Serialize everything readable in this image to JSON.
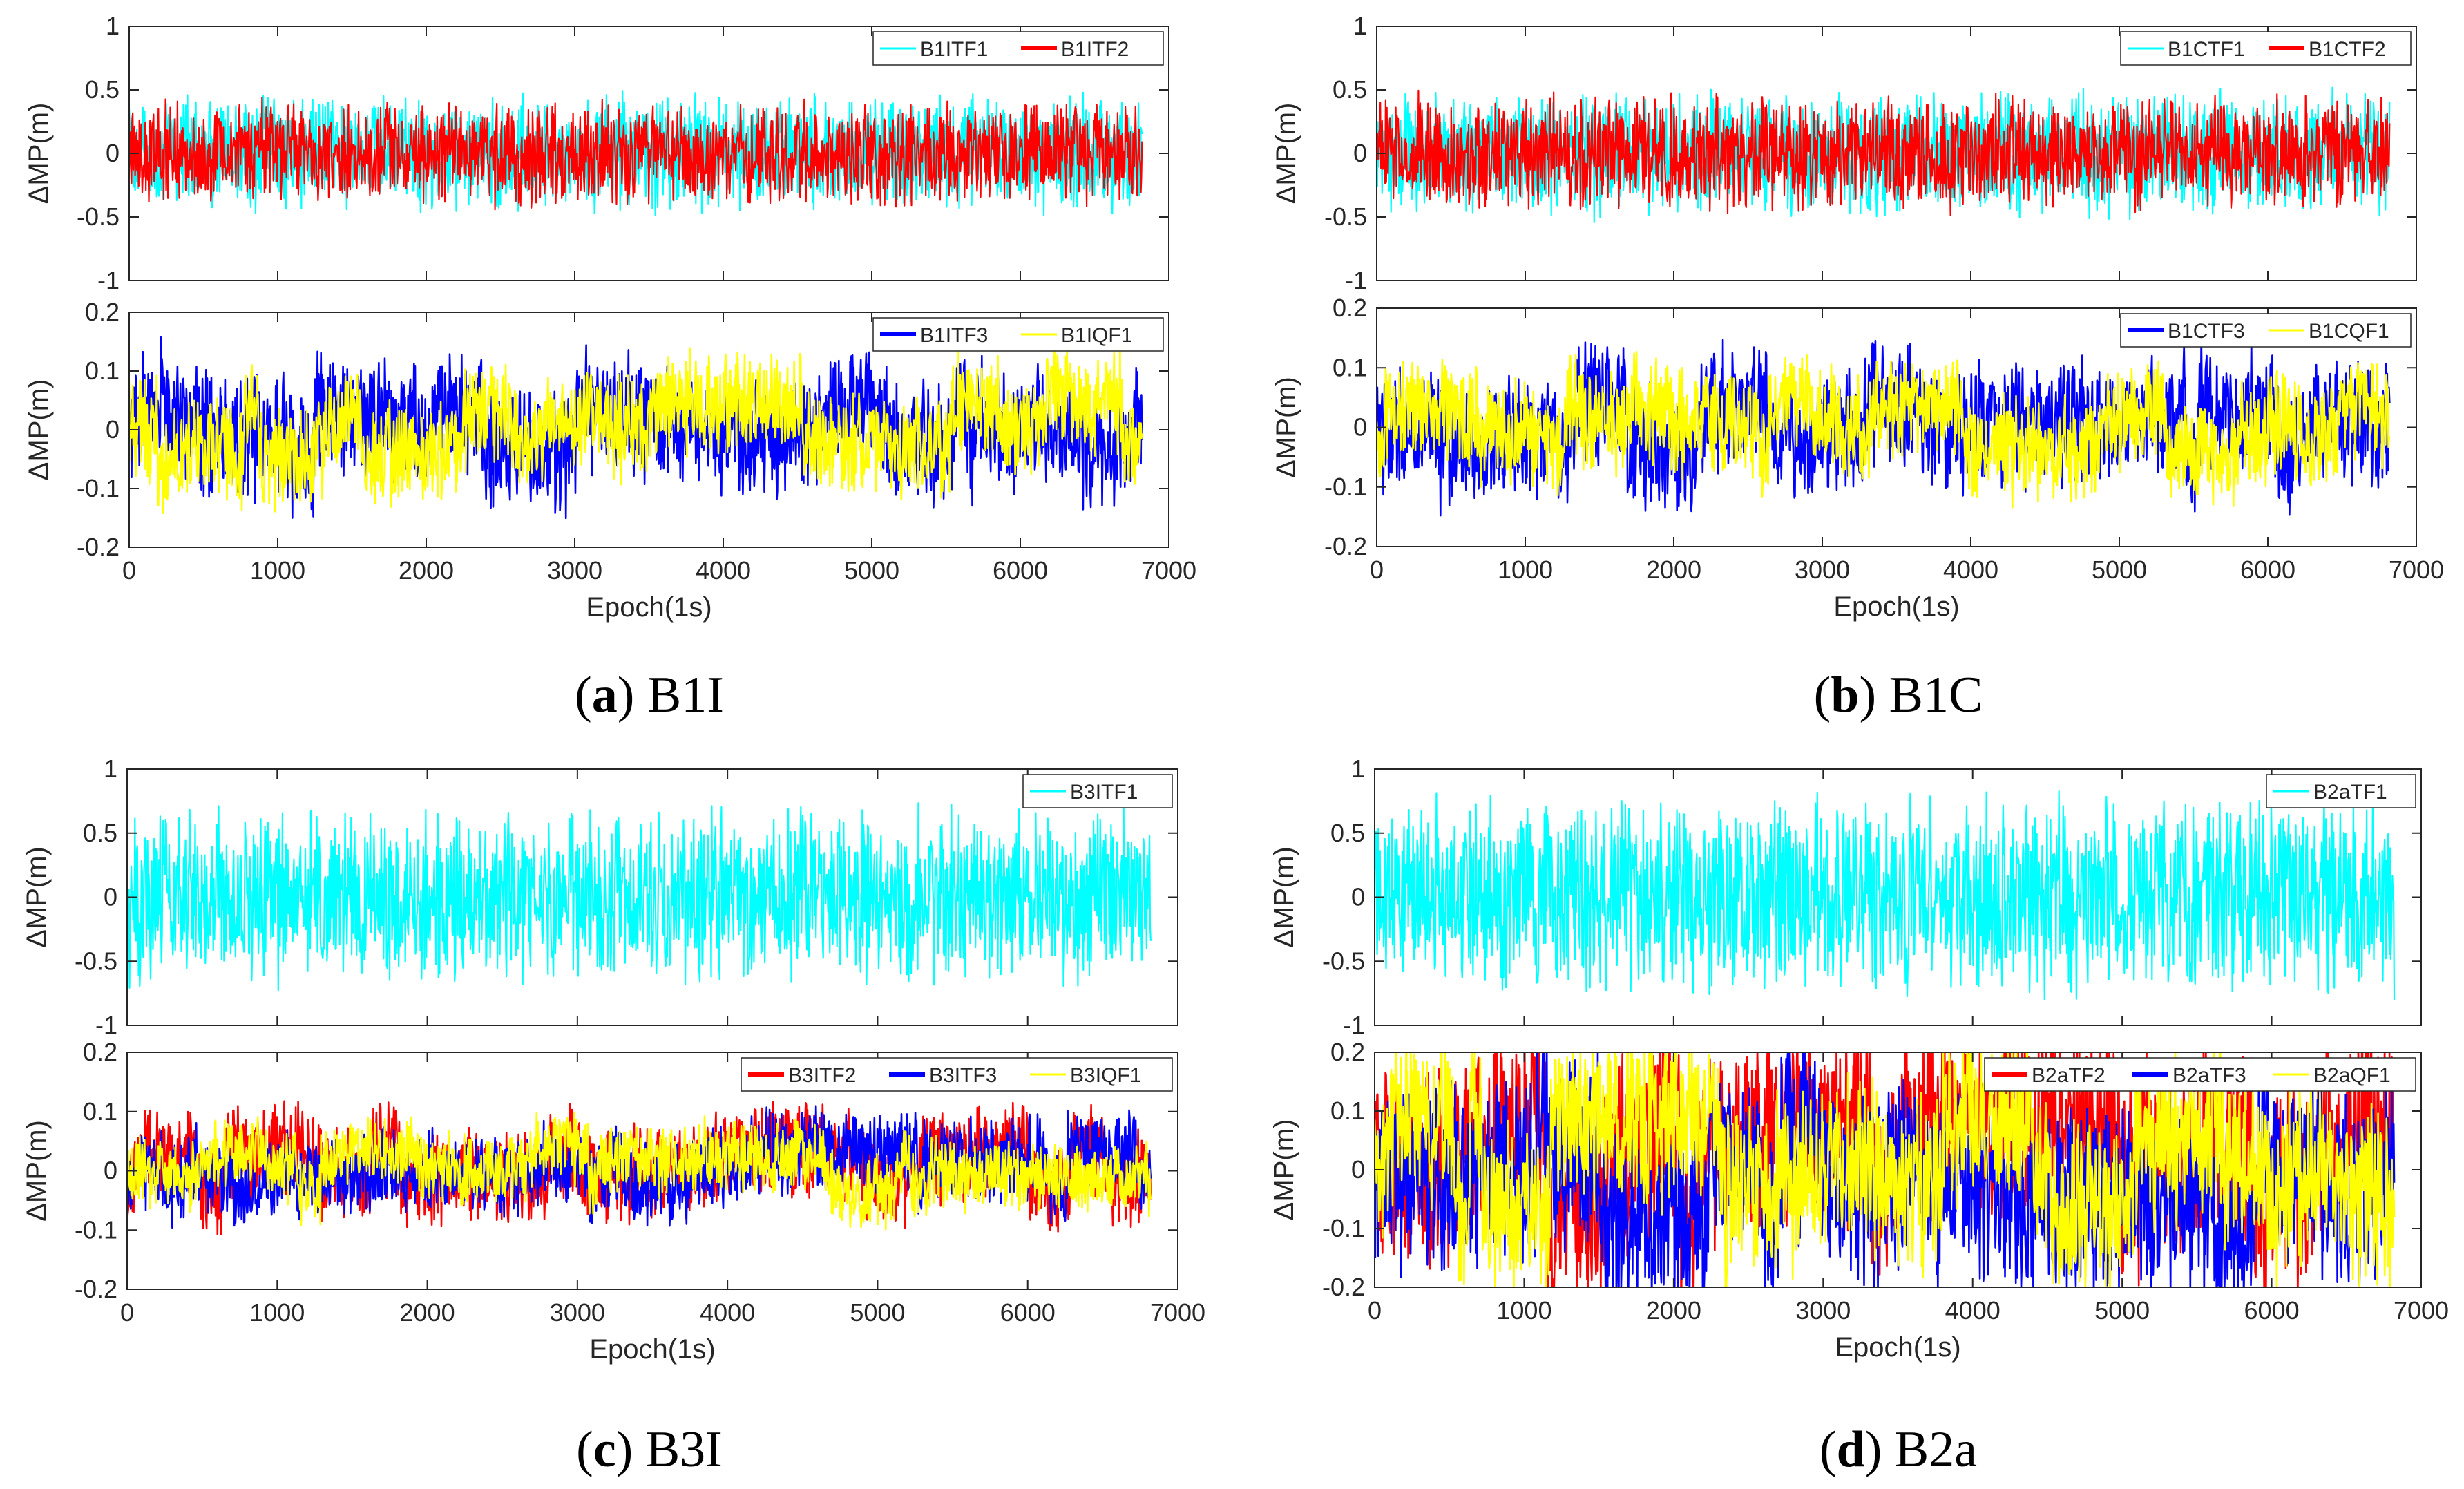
{
  "chart_data": [
    {
      "type": "line",
      "id": "a-top",
      "xlabel": "",
      "ylabel": "ΔMP(m)",
      "xlim": [
        0,
        7000
      ],
      "ylim": [
        -1,
        1
      ],
      "yticks": [
        "-1",
        "-0.5",
        "0",
        "0.5",
        "1"
      ],
      "xticks": [],
      "legend": "top-right",
      "series": [
        {
          "name": "B1ITF1",
          "color": "#00ffff",
          "approx": {
            "n": 6800,
            "amplitude": 0.5,
            "wander": 0.0
          }
        },
        {
          "name": "B1ITF2",
          "color": "#ff0000",
          "approx": {
            "n": 6800,
            "amplitude": 0.45,
            "wander": 0.0
          }
        }
      ]
    },
    {
      "type": "line",
      "id": "a-bottom",
      "xlabel": "Epoch(1s)",
      "ylabel": "ΔMP(m)",
      "xlim": [
        0,
        7000
      ],
      "ylim": [
        -0.2,
        0.2
      ],
      "yticks": [
        "-0.2",
        "-0.1",
        "0",
        "0.1",
        "0.2"
      ],
      "xticks": [
        "0",
        "1000",
        "2000",
        "3000",
        "4000",
        "5000",
        "6000",
        "7000"
      ],
      "legend": "top-right",
      "series": [
        {
          "name": "B1ITF3",
          "color": "#0000ff",
          "approx": {
            "n": 6800,
            "amplitude": 0.12,
            "wander": 0.05
          }
        },
        {
          "name": "B1IQF1",
          "color": "#ffff00",
          "approx": {
            "n": 6800,
            "amplitude": 0.1,
            "wander": 0.05
          }
        }
      ]
    },
    {
      "type": "line",
      "id": "b-top",
      "xlabel": "",
      "ylabel": "ΔMP(m)",
      "xlim": [
        0,
        7000
      ],
      "ylim": [
        -1,
        1
      ],
      "yticks": [
        "-1",
        "-0.5",
        "0",
        "0.5",
        "1"
      ],
      "xticks": [],
      "legend": "top-right",
      "series": [
        {
          "name": "B1CTF1",
          "color": "#00ffff",
          "approx": {
            "n": 6800,
            "amplitude": 0.55,
            "wander": 0.0
          }
        },
        {
          "name": "B1CTF2",
          "color": "#ff0000",
          "approx": {
            "n": 6800,
            "amplitude": 0.5,
            "wander": 0.0
          }
        }
      ]
    },
    {
      "type": "line",
      "id": "b-bottom",
      "xlabel": "Epoch(1s)",
      "ylabel": "ΔMP(m)",
      "xlim": [
        0,
        7000
      ],
      "ylim": [
        -0.2,
        0.2
      ],
      "yticks": [
        "-0.2",
        "-0.1",
        "0",
        "0.1",
        "0.2"
      ],
      "xticks": [
        "0",
        "1000",
        "2000",
        "3000",
        "4000",
        "5000",
        "6000",
        "7000"
      ],
      "legend": "top-right",
      "series": [
        {
          "name": "B1CTF3",
          "color": "#0000ff",
          "approx": {
            "n": 6800,
            "amplitude": 0.12,
            "wander": 0.05
          }
        },
        {
          "name": "B1CQF1",
          "color": "#ffff00",
          "approx": {
            "n": 6800,
            "amplitude": 0.1,
            "wander": 0.05
          }
        }
      ]
    },
    {
      "type": "line",
      "id": "c-top",
      "xlabel": "",
      "ylabel": "ΔMP(m)",
      "xlim": [
        0,
        7000
      ],
      "ylim": [
        -1,
        1
      ],
      "yticks": [
        "-1",
        "-0.5",
        "0",
        "0.5",
        "1"
      ],
      "xticks": [],
      "legend": "top-right",
      "series": [
        {
          "name": "B3ITF1",
          "color": "#00ffff",
          "approx": {
            "n": 6800,
            "amplitude": 0.75,
            "wander": 0.0
          }
        }
      ]
    },
    {
      "type": "line",
      "id": "c-bottom",
      "xlabel": "Epoch(1s)",
      "ylabel": "ΔMP(m)",
      "xlim": [
        0,
        7000
      ],
      "ylim": [
        -0.2,
        0.2
      ],
      "yticks": [
        "-0.2",
        "-0.1",
        "0",
        "0.1",
        "0.2"
      ],
      "xticks": [
        "0",
        "1000",
        "2000",
        "3000",
        "4000",
        "5000",
        "6000",
        "7000"
      ],
      "legend": "top-right",
      "series": [
        {
          "name": "B3ITF2",
          "color": "#ff0000",
          "approx": {
            "n": 6800,
            "amplitude": 0.09,
            "wander": 0.04
          }
        },
        {
          "name": "B3ITF3",
          "color": "#0000ff",
          "approx": {
            "n": 6800,
            "amplitude": 0.08,
            "wander": 0.04
          }
        },
        {
          "name": "B3IQF1",
          "color": "#ffff00",
          "approx": {
            "n": 6800,
            "amplitude": 0.07,
            "wander": 0.04
          }
        }
      ]
    },
    {
      "type": "line",
      "id": "d-top",
      "xlabel": "",
      "ylabel": "ΔMP(m)",
      "xlim": [
        0,
        7000
      ],
      "ylim": [
        -1,
        1
      ],
      "yticks": [
        "-1",
        "-0.5",
        "0",
        "0.5",
        "1"
      ],
      "xticks": [],
      "legend": "top-right",
      "series": [
        {
          "name": "B2aTF1",
          "color": "#00ffff",
          "approx": {
            "n": 6800,
            "amplitude": 0.85,
            "wander": 0.0
          }
        }
      ]
    },
    {
      "type": "line",
      "id": "d-bottom",
      "xlabel": "Epoch(1s)",
      "ylabel": "ΔMP(m)",
      "xlim": [
        0,
        7000
      ],
      "ylim": [
        -0.2,
        0.2
      ],
      "yticks": [
        "-0.2",
        "-0.1",
        "0",
        "0.1",
        "0.2"
      ],
      "xticks": [
        "0",
        "1000",
        "2000",
        "3000",
        "4000",
        "5000",
        "6000",
        "7000"
      ],
      "legend": "top-right",
      "series": [
        {
          "name": "B2aTF2",
          "color": "#ff0000",
          "approx": {
            "n": 6800,
            "amplitude": 0.2,
            "wander": 0.1
          }
        },
        {
          "name": "B2aTF3",
          "color": "#0000ff",
          "approx": {
            "n": 6800,
            "amplitude": 0.19,
            "wander": 0.1
          }
        },
        {
          "name": "B2aQF1",
          "color": "#ffff00",
          "approx": {
            "n": 6800,
            "amplitude": 0.17,
            "wander": 0.1
          }
        }
      ]
    }
  ],
  "captions": [
    {
      "letter": "a",
      "label": "B1I"
    },
    {
      "letter": "b",
      "label": "B1C"
    },
    {
      "letter": "c",
      "label": "B3I"
    },
    {
      "letter": "d",
      "label": "B2a"
    }
  ]
}
